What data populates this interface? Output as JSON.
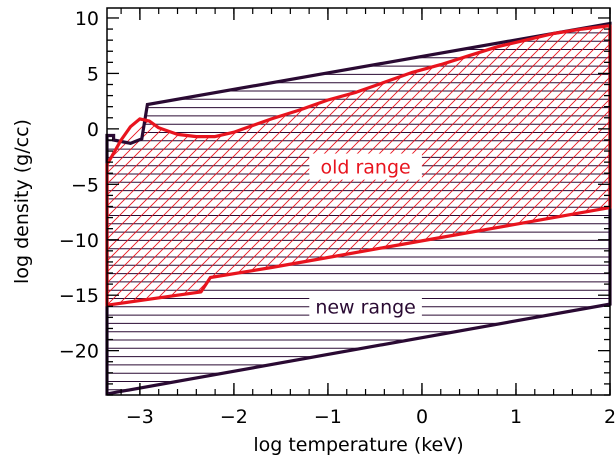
{
  "chart_data": {
    "type": "area",
    "title": "",
    "xlabel": "log temperature (keV)",
    "ylabel": "log density (g/cc)",
    "xlim": [
      -3.35,
      2.0
    ],
    "ylim": [
      -24.0,
      10.9
    ],
    "xticks": [
      -3,
      -2,
      -1,
      0,
      1,
      2
    ],
    "yticks": [
      10,
      5,
      0,
      -5,
      -10,
      -15,
      -20
    ],
    "regions": [
      {
        "label": "new range",
        "color": "#2a0a33",
        "hatch": "horizontal",
        "polygon": [
          [
            -3.35,
            -23.9
          ],
          [
            -3.35,
            -0.6
          ],
          [
            -3.28,
            -0.6
          ],
          [
            -3.28,
            -1.0
          ],
          [
            -3.1,
            -1.3
          ],
          [
            -2.98,
            -0.9
          ],
          [
            -2.92,
            2.2
          ],
          [
            2.0,
            9.5
          ],
          [
            2.0,
            -15.8
          ]
        ]
      },
      {
        "label": "old range",
        "color": "#e8141e",
        "hatch": "diagonal",
        "upper": [
          [
            -3.35,
            -3.2
          ],
          [
            -3.3,
            -2.5
          ],
          [
            -3.2,
            -1.0
          ],
          [
            -3.1,
            0.2
          ],
          [
            -3.0,
            0.9
          ],
          [
            -2.9,
            0.7
          ],
          [
            -2.8,
            0.1
          ],
          [
            -2.6,
            -0.5
          ],
          [
            -2.4,
            -0.7
          ],
          [
            -2.2,
            -0.7
          ],
          [
            -2.0,
            -0.3
          ],
          [
            -1.8,
            0.3
          ],
          [
            -1.6,
            0.9
          ],
          [
            -1.3,
            1.7
          ],
          [
            -1.0,
            2.6
          ],
          [
            -0.7,
            3.3
          ],
          [
            -0.4,
            4.2
          ],
          [
            -0.1,
            5.1
          ],
          [
            0.2,
            5.8
          ],
          [
            0.5,
            6.6
          ],
          [
            0.8,
            7.4
          ],
          [
            1.1,
            8.0
          ],
          [
            1.4,
            8.6
          ],
          [
            1.7,
            9.0
          ],
          [
            2.0,
            9.3
          ]
        ],
        "lower": [
          [
            -3.35,
            -15.9
          ],
          [
            -2.6,
            -15.0
          ],
          [
            -2.35,
            -14.7
          ],
          [
            -2.25,
            -13.4
          ],
          [
            -1.6,
            -12.5
          ],
          [
            -1.0,
            -11.6
          ],
          [
            -0.4,
            -10.7
          ],
          [
            0.2,
            -9.8
          ],
          [
            0.8,
            -8.9
          ],
          [
            1.4,
            -8.0
          ],
          [
            2.0,
            -7.1
          ]
        ]
      }
    ],
    "annotations": [
      {
        "text": "old range",
        "x": -0.6,
        "y": -3.4,
        "color": "#e8141e"
      },
      {
        "text": "new range",
        "x": -0.6,
        "y": -16.0,
        "color": "#2a0a33"
      }
    ]
  }
}
